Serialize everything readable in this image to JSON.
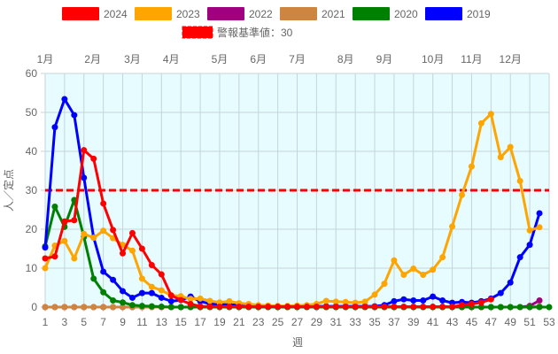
{
  "chart_data": {
    "type": "line",
    "title": "",
    "xlabel": "週",
    "ylabel": "人／定点",
    "xlim": [
      1,
      53
    ],
    "ylim": [
      0,
      60
    ],
    "yticks": [
      0,
      10,
      20,
      30,
      40,
      50,
      60
    ],
    "xticks": [
      1,
      3,
      5,
      7,
      9,
      11,
      13,
      15,
      17,
      19,
      21,
      23,
      25,
      27,
      29,
      31,
      33,
      35,
      37,
      39,
      41,
      43,
      45,
      47,
      49,
      51,
      53
    ],
    "grid": true,
    "legend_position": "top",
    "background_color": "#e6fcff",
    "month_labels": [
      {
        "label": "1月",
        "week": 1
      },
      {
        "label": "2月",
        "week": 5.9
      },
      {
        "label": "3月",
        "week": 10
      },
      {
        "label": "4月",
        "week": 14
      },
      {
        "label": "5月",
        "week": 19
      },
      {
        "label": "6月",
        "week": 23
      },
      {
        "label": "7月",
        "week": 27
      },
      {
        "label": "8月",
        "week": 32
      },
      {
        "label": "9月",
        "week": 36
      },
      {
        "label": "10月",
        "week": 41
      },
      {
        "label": "11月",
        "week": 45
      },
      {
        "label": "12月",
        "week": 49
      }
    ],
    "threshold": {
      "name": "警報基準値：30",
      "value": 30,
      "color": "#ff0000"
    },
    "series": [
      {
        "name": "2019",
        "color": "#0000ff",
        "values": [
          15.3,
          46.2,
          53.4,
          49.3,
          33.2,
          17.9,
          9.1,
          7,
          4.1,
          2.4,
          3.6,
          3.6,
          2.4,
          1.5,
          1.8,
          2.7,
          1.5,
          0.8,
          0.7,
          0.6,
          0.5,
          0.3,
          0.2,
          0.2,
          0.2,
          0.2,
          0.2,
          0.2,
          0.2,
          0.2,
          0.2,
          0.2,
          0.2,
          0.2,
          0.2,
          0.5,
          1.5,
          2,
          1.7,
          1.7,
          2.7,
          1.7,
          1.1,
          1.3,
          1.1,
          1.5,
          2.2,
          3.6,
          6.3,
          12.8,
          16,
          24.1
        ]
      },
      {
        "name": "2020",
        "color": "#008000",
        "values": [
          15.6,
          25.8,
          20.6,
          27.5,
          18,
          7.3,
          3.8,
          1.7,
          1.2,
          0.5,
          0.3,
          0.2,
          0.1,
          0,
          0,
          0,
          0,
          0,
          0,
          0,
          0,
          0,
          0,
          0,
          0,
          0,
          0,
          0,
          0,
          0,
          0,
          0,
          0,
          0,
          0,
          0,
          0,
          0,
          0,
          0,
          0,
          0,
          0,
          0,
          0,
          0,
          0,
          0,
          0,
          0,
          0,
          0,
          0
        ]
      },
      {
        "name": "2021",
        "color": "#cd853f",
        "values": [
          0,
          0,
          0,
          0,
          0,
          0,
          0,
          0,
          0,
          0,
          0,
          0,
          0,
          0,
          0,
          0,
          0,
          0,
          0,
          0,
          0,
          0,
          0,
          0,
          0,
          0,
          0,
          0,
          0,
          0,
          0,
          0,
          0,
          0,
          0,
          0,
          0,
          0,
          0,
          0,
          0,
          0,
          0,
          0,
          0,
          0,
          0,
          0,
          0,
          0,
          0,
          0.2
        ]
      },
      {
        "name": "2022",
        "color": "#a0007f",
        "values": [
          0,
          0,
          0,
          0,
          0,
          0,
          0,
          0,
          0,
          0,
          0,
          0,
          0,
          0,
          0,
          0,
          0,
          0,
          0,
          0,
          0,
          0,
          0,
          0,
          0,
          0,
          0,
          0,
          0,
          0,
          0,
          0,
          0,
          0,
          0,
          0,
          0,
          0,
          0,
          0,
          0,
          0,
          0,
          0,
          0,
          0,
          0,
          0,
          0,
          0,
          0.3,
          1.7
        ]
      },
      {
        "name": "2023",
        "color": "#ffa500",
        "values": [
          10,
          15.8,
          17,
          12.5,
          18.8,
          17.8,
          19.6,
          17.7,
          16,
          14.5,
          7.3,
          5.2,
          4.3,
          3,
          2.8,
          2.1,
          2.2,
          1.6,
          1.2,
          1.5,
          1,
          0.8,
          0.5,
          0.4,
          0.3,
          0.3,
          0.4,
          0.5,
          0.8,
          1.6,
          1.4,
          1.3,
          1.1,
          1.4,
          3.2,
          6,
          12,
          8.3,
          9.9,
          8.3,
          9.6,
          12.8,
          20.7,
          28.8,
          36.1,
          47.2,
          49.6,
          38.5,
          41.1,
          32.4,
          19.7,
          20.5
        ]
      },
      {
        "name": "2024",
        "color": "#ff0000",
        "values": [
          12.5,
          13,
          22,
          22.3,
          40.3,
          38.1,
          26.6,
          19.8,
          13.8,
          19,
          15,
          10.8,
          8.4,
          3,
          1.8,
          0.8,
          0.2,
          0.1,
          0.1,
          0.1,
          0.1,
          0.1,
          0.1,
          0.1,
          0.1,
          0.1,
          0.1,
          0.1,
          0.1,
          0.1,
          0.1,
          0.1,
          0.1,
          0.1,
          0.1,
          0.1,
          0.1,
          0.1,
          0.1,
          0.1,
          0.1,
          0.1,
          0.1,
          0.5,
          0.8,
          1.2,
          2
        ]
      }
    ]
  }
}
